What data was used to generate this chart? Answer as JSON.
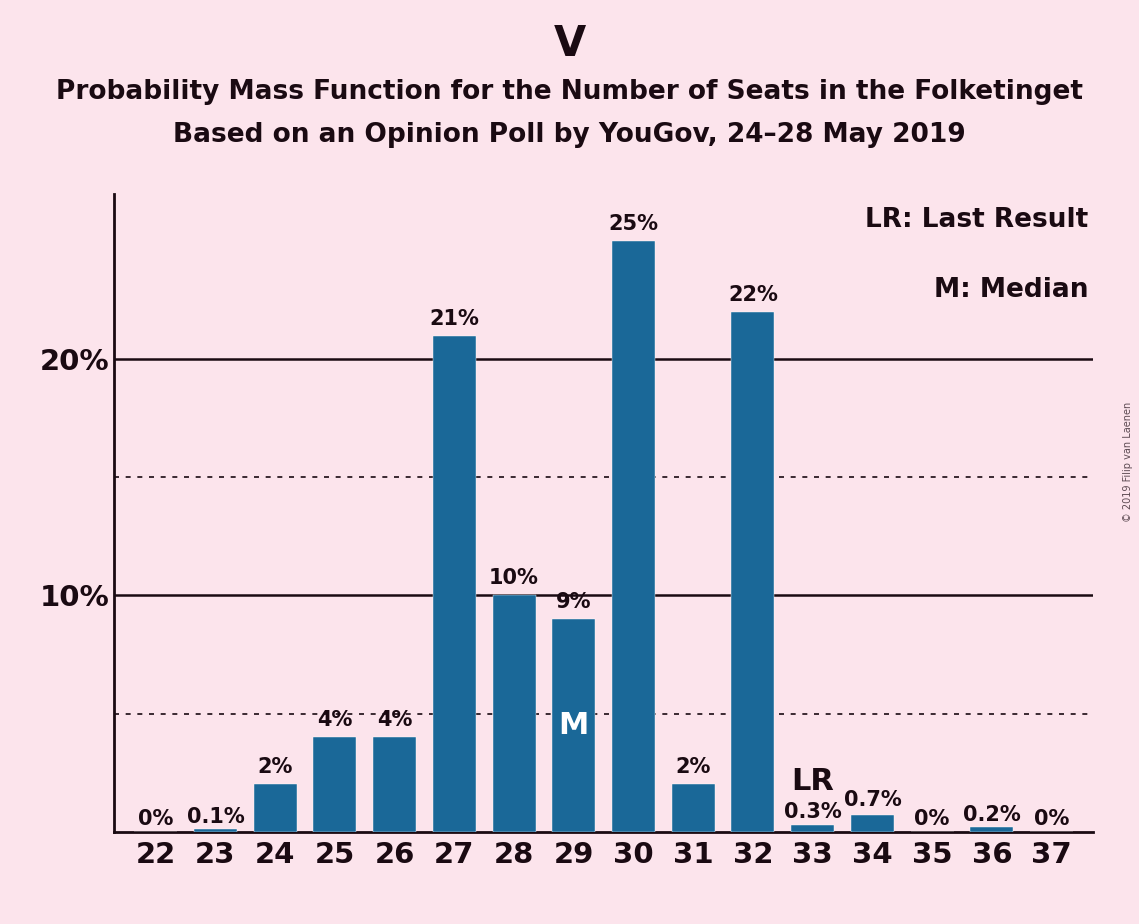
{
  "title_main": "V",
  "title_line1": "Probability Mass Function for the Number of Seats in the Folketinget",
  "title_line2": "Based on an Opinion Poll by YouGov, 24–28 May 2019",
  "watermark": "© 2019 Filip van Laenen",
  "categories": [
    22,
    23,
    24,
    25,
    26,
    27,
    28,
    29,
    30,
    31,
    32,
    33,
    34,
    35,
    36,
    37
  ],
  "values": [
    0.0,
    0.1,
    2.0,
    4.0,
    4.0,
    21.0,
    10.0,
    9.0,
    25.0,
    2.0,
    22.0,
    0.3,
    0.7,
    0.0,
    0.2,
    0.0
  ],
  "bar_labels": [
    "0%",
    "0.1%",
    "2%",
    "4%",
    "4%",
    "21%",
    "10%",
    "9%",
    "25%",
    "2%",
    "22%",
    "0.3%",
    "0.7%",
    "0%",
    "0.2%",
    "0%"
  ],
  "bar_color": "#1a6898",
  "background_color": "#fce4ec",
  "text_color": "#1a0a12",
  "median_seat": 29,
  "last_result_seat": 33,
  "legend_lr": "LR: Last Result",
  "legend_m": "M: Median",
  "ylim": [
    0,
    27
  ],
  "dotted_yticks": [
    5,
    15
  ],
  "solid_yticks": [
    10,
    20
  ],
  "title_fontsize": 30,
  "subtitle_fontsize": 19,
  "bar_label_fontsize": 15,
  "axis_tick_fontsize": 21,
  "legend_fontsize": 19,
  "m_label_fontsize": 22,
  "lr_label_fontsize": 22
}
